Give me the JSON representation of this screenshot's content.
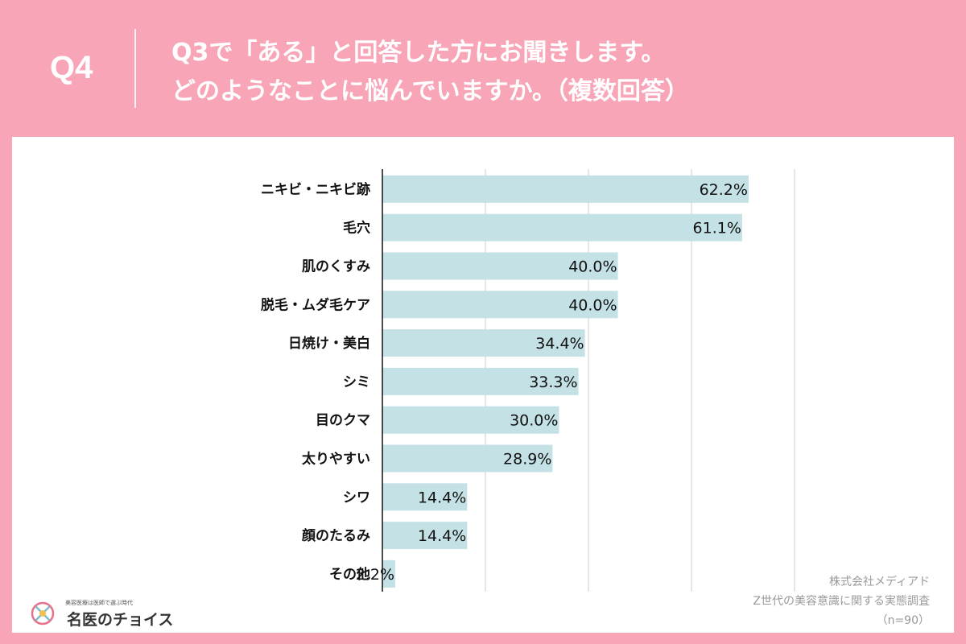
{
  "header": {
    "qnum": "Q4",
    "question_line1": "Q3で「ある」と回答した方にお聞きします。",
    "question_line2": "どのようなことに悩んでいますか。（複数回答）"
  },
  "colors": {
    "background": "#f8a5b8",
    "bar": "#c4e1e6",
    "panel": "#ffffff",
    "gridline": "#cccccc"
  },
  "chart_data": {
    "type": "bar",
    "orientation": "horizontal",
    "categories": [
      "ニキビ・ニキビ跡",
      "毛穴",
      "肌のくすみ",
      "脱毛・ムダ毛ケア",
      "日焼け・美白",
      "シミ",
      "目のクマ",
      "太りやすい",
      "シワ",
      "顔のたるみ",
      "その他"
    ],
    "values": [
      62.2,
      61.1,
      40.0,
      40.0,
      34.4,
      33.3,
      30.0,
      28.9,
      14.4,
      14.4,
      2.2
    ],
    "value_labels": [
      "62.2%",
      "61.1%",
      "40.0%",
      "40.0%",
      "34.4%",
      "33.3%",
      "30.0%",
      "28.9%",
      "14.4%",
      "14.4%",
      "2.2%"
    ],
    "xlim": [
      0,
      70
    ],
    "grid_step": 17.5,
    "grid": true
  },
  "footer": {
    "company": "株式会社メディアド",
    "survey": "Z世代の美容意識に関する実態調査",
    "sample": "（n=90）"
  },
  "logo": {
    "tagline": "美容医療は医師で選ぶ時代",
    "name": "名医のチョイス"
  }
}
